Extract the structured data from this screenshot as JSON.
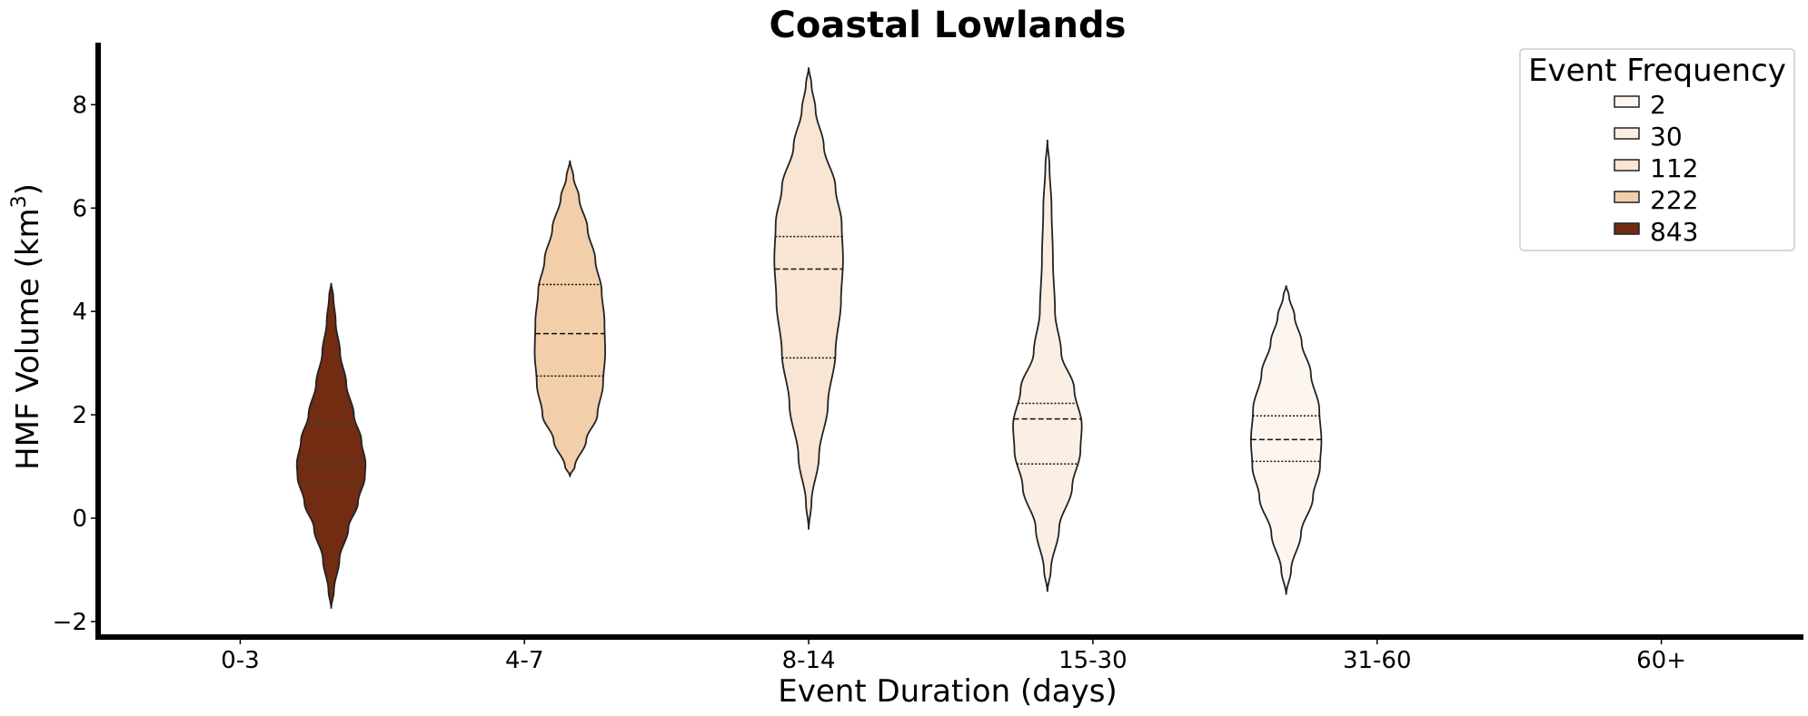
{
  "chart_data": {
    "type": "violin",
    "title": "Coastal Lowlands",
    "xlabel": "Event Duration (days)",
    "ylabel": "HMF Volume (km",
    "ylabel_sup": "3",
    "ylabel_close": ")",
    "categories": [
      "0-3",
      "4-7",
      "8-14",
      "15-30",
      "31-60",
      "60+"
    ],
    "ylim": [
      -2.3,
      9.2
    ],
    "yticks": [
      -2,
      0,
      2,
      4,
      6,
      8
    ],
    "ytick_labels": [
      "−2",
      "0",
      "2",
      "4",
      "6",
      "8"
    ],
    "grid": false,
    "legend": {
      "title": "Event Frequency",
      "placement": "top-right",
      "entries": [
        {
          "label": "2",
          "color": "#fdf6f0"
        },
        {
          "label": "30",
          "color": "#fbeee3"
        },
        {
          "label": "112",
          "color": "#f8e5d4"
        },
        {
          "label": "222",
          "color": "#f2ceaa"
        },
        {
          "label": "843",
          "color": "#722c12"
        }
      ]
    },
    "violins": [
      {
        "category": "0-3",
        "frequency": 843,
        "color": "#722c12",
        "inner_color": "#444444",
        "min": -1.75,
        "max": 4.55,
        "q1": 0.65,
        "median": 1.05,
        "q3": 1.85,
        "max_halfwidth": 0.078,
        "density": [
          [
            -1.75,
            0.0
          ],
          [
            -1.4,
            0.08
          ],
          [
            -0.8,
            0.24
          ],
          [
            -0.2,
            0.5
          ],
          [
            0.3,
            0.78
          ],
          [
            0.8,
            0.98
          ],
          [
            1.05,
            1.0
          ],
          [
            1.5,
            0.88
          ],
          [
            2.0,
            0.66
          ],
          [
            2.6,
            0.44
          ],
          [
            3.2,
            0.26
          ],
          [
            3.8,
            0.13
          ],
          [
            4.3,
            0.06
          ],
          [
            4.55,
            0.0
          ]
        ]
      },
      {
        "category": "4-7",
        "frequency": 222,
        "color": "#f2ceaa",
        "inner_color": "#111111",
        "min": 0.82,
        "max": 6.92,
        "q1": 2.75,
        "median": 3.57,
        "q3": 4.52,
        "max_halfwidth": 0.08,
        "density": [
          [
            0.82,
            0.0
          ],
          [
            1.0,
            0.14
          ],
          [
            1.5,
            0.46
          ],
          [
            2.0,
            0.78
          ],
          [
            2.6,
            0.94
          ],
          [
            3.2,
            1.0
          ],
          [
            3.8,
            0.98
          ],
          [
            4.4,
            0.9
          ],
          [
            5.0,
            0.72
          ],
          [
            5.6,
            0.5
          ],
          [
            6.2,
            0.26
          ],
          [
            6.6,
            0.1
          ],
          [
            6.92,
            0.0
          ]
        ]
      },
      {
        "category": "8-14",
        "frequency": 112,
        "color": "#f8e5d4",
        "inner_color": "#111111",
        "min": -0.22,
        "max": 8.72,
        "q1": 3.1,
        "median": 4.82,
        "q3": 5.45,
        "max_halfwidth": 0.078,
        "density": [
          [
            -0.22,
            0.0
          ],
          [
            0.3,
            0.08
          ],
          [
            1.2,
            0.3
          ],
          [
            2.2,
            0.56
          ],
          [
            3.2,
            0.78
          ],
          [
            4.2,
            0.94
          ],
          [
            5.0,
            1.0
          ],
          [
            5.7,
            0.96
          ],
          [
            6.4,
            0.78
          ],
          [
            7.2,
            0.44
          ],
          [
            7.9,
            0.2
          ],
          [
            8.4,
            0.08
          ],
          [
            8.72,
            0.0
          ]
        ]
      },
      {
        "category": "15-30",
        "frequency": 30,
        "color": "#fbeee3",
        "inner_color": "#111111",
        "min": -1.42,
        "max": 7.32,
        "q1": 1.05,
        "median": 1.92,
        "q3": 2.22,
        "max_halfwidth": 0.078,
        "density": [
          [
            -1.42,
            0.0
          ],
          [
            -1.0,
            0.1
          ],
          [
            -0.2,
            0.34
          ],
          [
            0.6,
            0.72
          ],
          [
            1.3,
            0.96
          ],
          [
            1.8,
            1.0
          ],
          [
            2.5,
            0.78
          ],
          [
            3.2,
            0.4
          ],
          [
            4.0,
            0.22
          ],
          [
            5.0,
            0.16
          ],
          [
            6.0,
            0.12
          ],
          [
            6.8,
            0.06
          ],
          [
            7.32,
            0.0
          ]
        ]
      },
      {
        "category": "31-60",
        "frequency": 2,
        "color": "#fdf6f0",
        "inner_color": "#111111",
        "min": -1.48,
        "max": 4.5,
        "q1": 1.1,
        "median": 1.52,
        "q3": 1.98,
        "max_halfwidth": 0.08,
        "density": [
          [
            -1.48,
            0.0
          ],
          [
            -1.0,
            0.14
          ],
          [
            -0.3,
            0.42
          ],
          [
            0.4,
            0.76
          ],
          [
            1.0,
            0.96
          ],
          [
            1.5,
            1.0
          ],
          [
            2.1,
            0.94
          ],
          [
            2.8,
            0.7
          ],
          [
            3.4,
            0.44
          ],
          [
            3.9,
            0.24
          ],
          [
            4.3,
            0.08
          ],
          [
            4.5,
            0.0
          ]
        ]
      }
    ]
  }
}
